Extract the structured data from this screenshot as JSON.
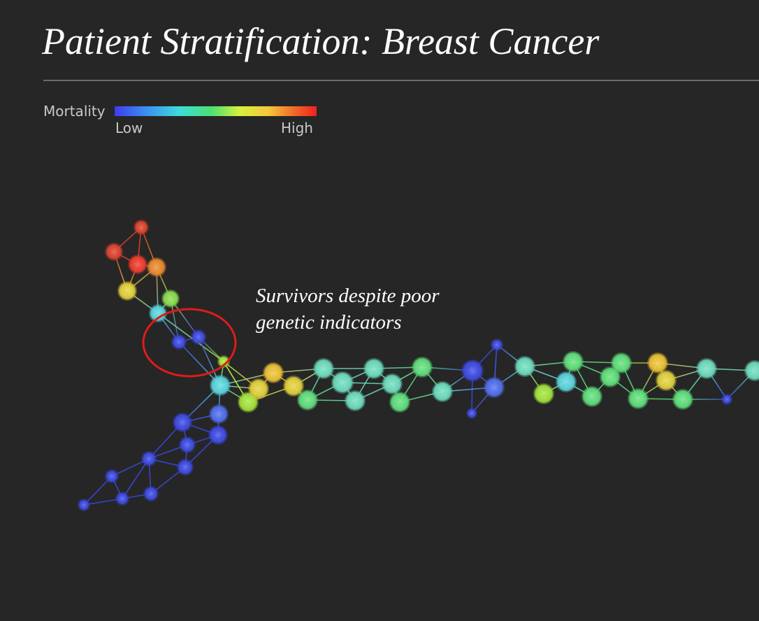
{
  "title": "Patient Stratification: Breast Cancer",
  "legend": {
    "label": "Mortality",
    "low_label": "Low",
    "high_label": "High",
    "gradient_colors": [
      "#3c3cf0",
      "#3c8cf0",
      "#3cdcdc",
      "#4ce070",
      "#d8f03c",
      "#f5c83c",
      "#f07028",
      "#f02020"
    ]
  },
  "annotation": {
    "line1": "Survivors despite poor",
    "line2": "genetic indicators",
    "highlight_color": "#e01b1b"
  },
  "colors": {
    "background": "#262626",
    "text": "#ffffff",
    "rule": "#6b6b6b",
    "legend_text": "#c9c9c9"
  }
}
